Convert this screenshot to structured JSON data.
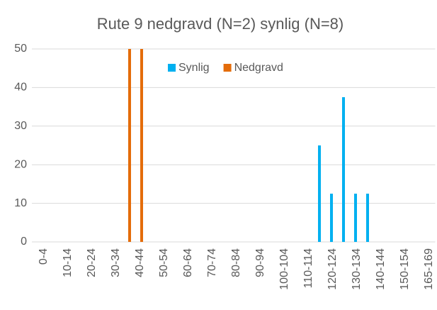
{
  "chart_data": {
    "type": "bar",
    "title": "Rute 9 nedgravd (N=2) synlig (N=8)",
    "categories": [
      "0-4",
      null,
      "10-14",
      null,
      "20-24",
      null,
      "30-34",
      null,
      "40-44",
      null,
      "50-54",
      null,
      "60-64",
      null,
      "70-74",
      null,
      "80-84",
      null,
      "90-94",
      null,
      "100-104",
      null,
      "110-114",
      null,
      "120-124",
      null,
      "130-134",
      null,
      "140-144",
      null,
      "150-154",
      null,
      "165-169"
    ],
    "series": [
      {
        "name": "Synlig",
        "color": "#00b0f0",
        "values": [
          0,
          0,
          0,
          0,
          0,
          0,
          0,
          0,
          0,
          0,
          0,
          0,
          0,
          0,
          0,
          0,
          0,
          0,
          0,
          0,
          0,
          0,
          0,
          25,
          12.5,
          37.5,
          12.5,
          12.5,
          0,
          0,
          0,
          0,
          0
        ]
      },
      {
        "name": "Nedgravd",
        "color": "#e46c0a",
        "values": [
          0,
          0,
          0,
          0,
          0,
          0,
          0,
          50,
          50,
          0,
          0,
          0,
          0,
          0,
          0,
          0,
          0,
          0,
          0,
          0,
          0,
          0,
          0,
          0,
          0,
          0,
          0,
          0,
          0,
          0,
          0,
          0,
          0
        ]
      }
    ],
    "ylim": [
      0,
      50
    ],
    "yticks": [
      0,
      10,
      20,
      30,
      40,
      50
    ],
    "grid": true,
    "legend": "top"
  }
}
